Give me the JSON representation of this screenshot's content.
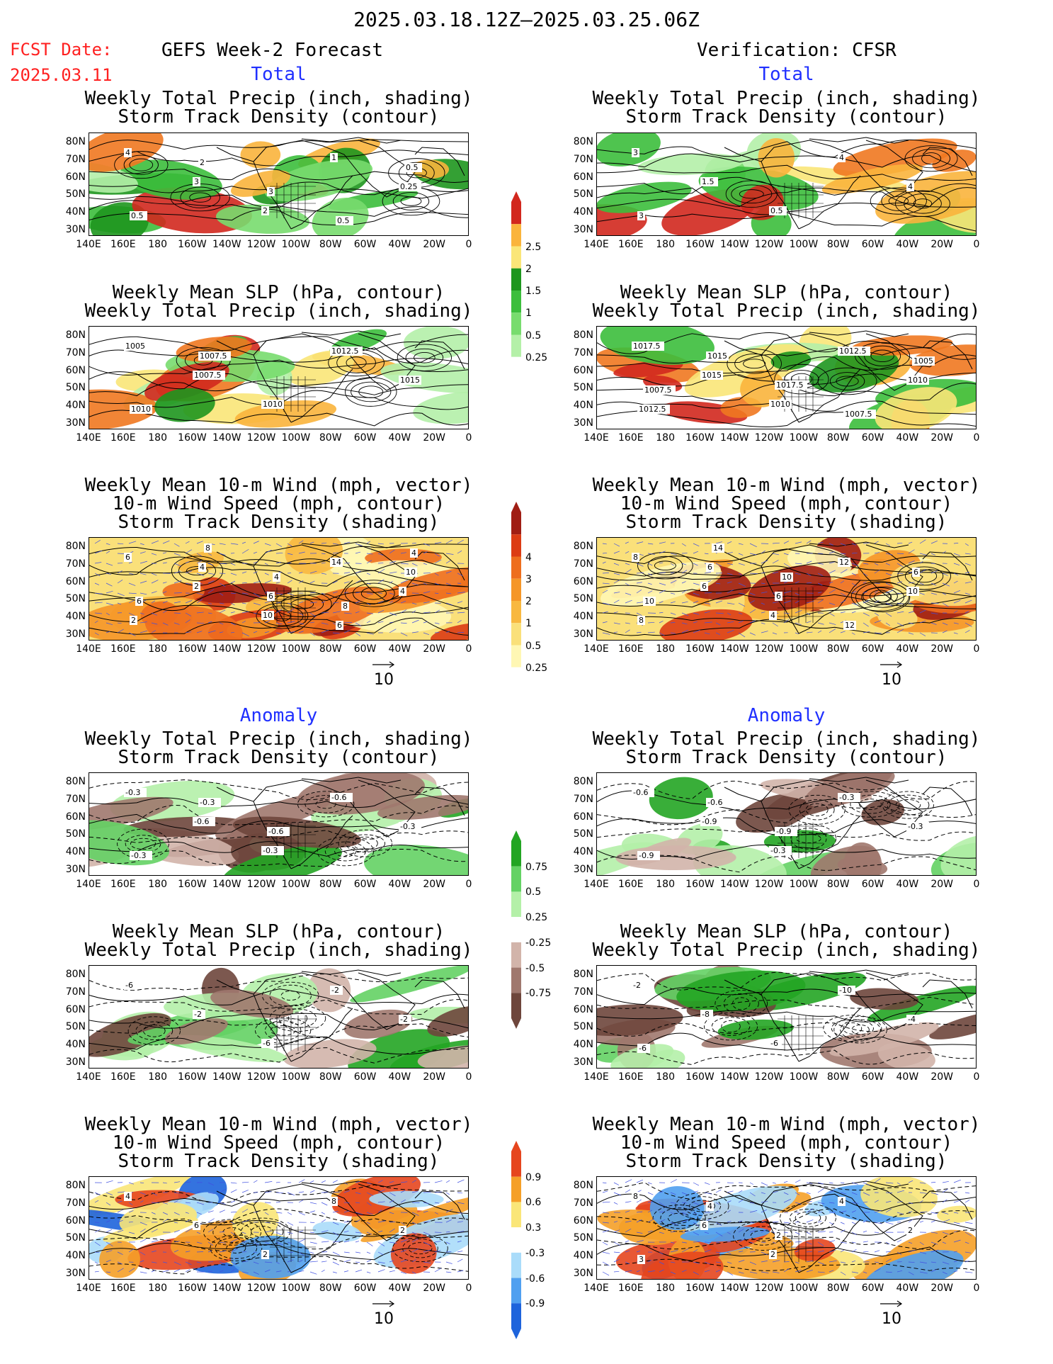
{
  "header": {
    "period": "2025.03.18.12Z–2025.03.25.06Z",
    "fcst_label": "FCST Date:",
    "fcst_date": "2025.03.11",
    "left_title": "GEFS Week-2 Forecast",
    "right_title": "Verification: CFSR",
    "section_total": "Total",
    "section_anomaly": "Anomaly"
  },
  "colors": {
    "red_text": "#ff2020",
    "blue_text": "#2030ff",
    "precip_scale": [
      "#b4f0a8",
      "#78dc6e",
      "#3cbe3c",
      "#1e961e",
      "#fae678",
      "#fab43c",
      "#f07820",
      "#d2281e"
    ],
    "storm_scale": [
      "#fff7b4",
      "#fae07a",
      "#f8b840",
      "#f59628",
      "#ee6e1e",
      "#dc3c14",
      "#a01e14"
    ],
    "anom_precip_scale": [
      "#6e463c",
      "#a0786e",
      "#d2b4aa",
      "#ffffff",
      "#b4f0a8",
      "#64d264",
      "#23a523"
    ],
    "anom_storm_scale": [
      "#1e64dc",
      "#50a0f0",
      "#aadcfa",
      "#ffffff",
      "#fae678",
      "#f5a028",
      "#e6461e"
    ]
  },
  "titles": {
    "precip_std": [
      "Weekly Total Precip (inch, shading)",
      "Storm Track Density (contour)"
    ],
    "slp_precip": [
      "Weekly Mean SLP (hPa, contour)",
      "Weekly Total Precip (inch, shading)"
    ],
    "wind_std": [
      "Weekly Mean 10-m Wind (mph, vector)",
      "10-m Wind Speed (mph, contour)",
      "Storm Track Density (shading)"
    ]
  },
  "axes": {
    "lat_labels": [
      "80N",
      "70N",
      "60N",
      "50N",
      "40N",
      "30N"
    ],
    "lon_labels": [
      "140E",
      "160E",
      "180",
      "160W",
      "140W",
      "120W",
      "100W",
      "80W",
      "60W",
      "40W",
      "20W",
      "0"
    ]
  },
  "vector_ref": "10",
  "colorbars": {
    "total_precip": [
      "0.25",
      "0.5",
      "1",
      "1.5",
      "2",
      "2.5"
    ],
    "total_storm": [
      "0.25",
      "0.5",
      "1",
      "2",
      "3",
      "4"
    ],
    "anom_precip": [
      "-0.75",
      "-0.5",
      "-0.25",
      "0.25",
      "0.5",
      "0.75"
    ],
    "anom_storm": [
      "-0.9",
      "-0.6",
      "-0.3",
      "0.3",
      "0.6",
      "0.9"
    ]
  },
  "panel_labels": {
    "f_precip": [
      "4",
      "3",
      "2",
      "1",
      "0.25",
      "0.5",
      "2",
      "3",
      "0.5",
      "0.5"
    ],
    "f_slp": [
      "1005",
      "1007.5",
      "1010",
      "1012.5",
      "1015",
      "1010",
      "1007.5"
    ],
    "f_wind": [
      "6",
      "2",
      "10",
      "14",
      "4",
      "2",
      "4",
      "6",
      "6",
      "10",
      "6",
      "8",
      "4",
      "8",
      "4"
    ],
    "v_precip": [
      "3",
      "1.5",
      "0.5",
      "4",
      "4",
      "3"
    ],
    "v_slp": [
      "1017.5",
      "1015",
      "1010",
      "1012.5",
      "1010",
      "1012.5",
      "1015",
      "1017.5",
      "1007.5",
      "1005",
      "1007.5"
    ],
    "v_wind": [
      "8",
      "6",
      "4",
      "12",
      "10",
      "8",
      "6",
      "6",
      "12",
      "6",
      "10",
      "14",
      "10"
    ],
    "fa_precip": [
      "-0.3",
      "-0.6",
      "-0.3",
      "-0.6",
      "-0.3",
      "-0.3",
      "-0.3",
      "-0.6"
    ],
    "fa_slp": [
      "-6",
      "-2",
      "-6",
      "-2",
      "-2"
    ],
    "fa_wind": [
      "4",
      "6",
      "2",
      "8",
      "2"
    ],
    "va_precip": [
      "-0.6",
      "-0.9",
      "-0.3",
      "-0.3",
      "-0.3",
      "-0.9",
      "-0.6",
      "-0.9"
    ],
    "va_slp": [
      "-2",
      "-8",
      "-6",
      "-10",
      "-4",
      "-6"
    ],
    "va_wind": [
      "8",
      "6",
      "2",
      "4",
      "2",
      "3",
      "4",
      "2"
    ]
  }
}
